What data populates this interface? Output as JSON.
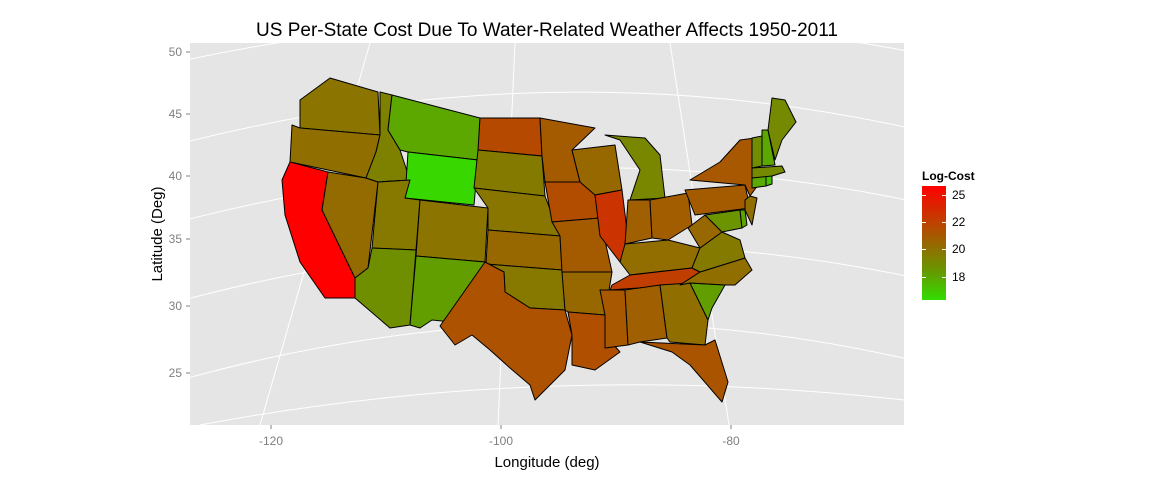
{
  "title": "US Per-State Cost Due To Water-Related Weather Affects 1950-2011",
  "axes": {
    "x_title": "Longitude (deg)",
    "y_title": "Latitude (Deg)",
    "x_ticks": [
      "-120",
      "-100",
      "-80"
    ],
    "y_ticks": [
      "50",
      "45",
      "40",
      "35",
      "30",
      "25"
    ]
  },
  "legend": {
    "title": "Log-Cost",
    "ticks": [
      "25",
      "22",
      "20",
      "18"
    ],
    "low_color": "#33dd00",
    "high_color": "#ff0000"
  },
  "colors": {
    "panel_bg": "#e5e5e5",
    "grid": "#ffffff",
    "state_border": "#000000"
  },
  "chart_data": {
    "type": "choropleth",
    "value_label": "Log-Cost",
    "value_range": [
      16.5,
      25.5
    ],
    "xlim": [
      -128,
      -66
    ],
    "ylim": [
      21,
      51
    ],
    "projection": "conic",
    "states": [
      {
        "name": "Washington",
        "value": 20.4
      },
      {
        "name": "Oregon",
        "value": 20.6
      },
      {
        "name": "California",
        "value": 25.5
      },
      {
        "name": "Nevada",
        "value": 20.8
      },
      {
        "name": "Idaho",
        "value": 19.8
      },
      {
        "name": "Montana",
        "value": 18.3
      },
      {
        "name": "Wyoming",
        "value": 16.7
      },
      {
        "name": "Utah",
        "value": 20.2
      },
      {
        "name": "Arizona",
        "value": 19.2
      },
      {
        "name": "Colorado",
        "value": 20.4
      },
      {
        "name": "New Mexico",
        "value": 18.6
      },
      {
        "name": "North Dakota",
        "value": 22.3
      },
      {
        "name": "South Dakota",
        "value": 20.1
      },
      {
        "name": "Nebraska",
        "value": 20.3
      },
      {
        "name": "Kansas",
        "value": 20.9
      },
      {
        "name": "Oklahoma",
        "value": 20.2
      },
      {
        "name": "Texas",
        "value": 21.9
      },
      {
        "name": "Minnesota",
        "value": 21.5
      },
      {
        "name": "Iowa",
        "value": 22.1
      },
      {
        "name": "Missouri",
        "value": 21.5
      },
      {
        "name": "Arkansas",
        "value": 20.9
      },
      {
        "name": "Louisiana",
        "value": 22.0
      },
      {
        "name": "Wisconsin",
        "value": 20.9
      },
      {
        "name": "Illinois",
        "value": 23.2
      },
      {
        "name": "Michigan",
        "value": 19.6
      },
      {
        "name": "Indiana",
        "value": 21.3
      },
      {
        "name": "Ohio",
        "value": 21.4
      },
      {
        "name": "Kentucky",
        "value": 20.7
      },
      {
        "name": "Tennessee",
        "value": 22.7
      },
      {
        "name": "Mississippi",
        "value": 21.6
      },
      {
        "name": "Alabama",
        "value": 21.3
      },
      {
        "name": "Georgia",
        "value": 20.6
      },
      {
        "name": "Florida",
        "value": 21.8
      },
      {
        "name": "South Carolina",
        "value": 18.6
      },
      {
        "name": "North Carolina",
        "value": 20.6
      },
      {
        "name": "Virginia",
        "value": 20.1
      },
      {
        "name": "West Virginia",
        "value": 20.9
      },
      {
        "name": "Pennsylvania",
        "value": 21.5
      },
      {
        "name": "New York",
        "value": 21.6
      },
      {
        "name": "Maryland",
        "value": 19.0
      },
      {
        "name": "Delaware",
        "value": 18.4
      },
      {
        "name": "New Jersey",
        "value": 20.6
      },
      {
        "name": "Connecticut",
        "value": 18.2
      },
      {
        "name": "Rhode Island",
        "value": 17.5
      },
      {
        "name": "Massachusetts",
        "value": 19.4
      },
      {
        "name": "Vermont",
        "value": 19.2
      },
      {
        "name": "New Hampshire",
        "value": 18.3
      },
      {
        "name": "Maine",
        "value": 19.4
      }
    ]
  }
}
